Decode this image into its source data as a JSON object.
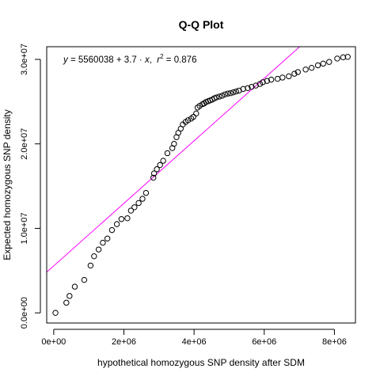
{
  "chart_data": {
    "type": "scatter",
    "title": "Q-Q Plot",
    "xlabel": "hypothetical homozygous SNP density after SDM",
    "ylabel": "Expected homozygous SNP density",
    "xlim": [
      -200000,
      8600000
    ],
    "ylim": [
      -1200000,
      31500000
    ],
    "xticks": [
      0,
      2000000,
      4000000,
      6000000,
      8000000
    ],
    "xtick_labels": [
      "0e+00",
      "2e+06",
      "4e+06",
      "6e+06",
      "8e+06"
    ],
    "yticks": [
      0,
      10000000,
      20000000,
      30000000
    ],
    "ytick_labels": [
      "0.0e+00",
      "1.0e+07",
      "2.0e+07",
      "3.0e+07"
    ],
    "grid": false,
    "legend": "none",
    "point_color": "#000000",
    "line_color": "#ff00ff",
    "fit_line": {
      "intercept": 5560038,
      "slope": 3.7
    },
    "annotation": {
      "y_var": "y",
      "formula_mid": " = 5560038 + 3.7 · ",
      "x_var": "x",
      "sep": ",  ",
      "r_var": "r",
      "r_exp": "2",
      "r_val": " = 0.876"
    },
    "points": [
      [
        50000,
        0
      ],
      [
        360000,
        1200000
      ],
      [
        450000,
        2000000
      ],
      [
        600000,
        3100000
      ],
      [
        870000,
        3900000
      ],
      [
        1050000,
        5600000
      ],
      [
        1150000,
        6700000
      ],
      [
        1280000,
        7500000
      ],
      [
        1400000,
        8300000
      ],
      [
        1530000,
        8800000
      ],
      [
        1660000,
        9800000
      ],
      [
        1800000,
        10500000
      ],
      [
        1930000,
        11100000
      ],
      [
        2100000,
        11200000
      ],
      [
        2200000,
        12100000
      ],
      [
        2300000,
        12500000
      ],
      [
        2420000,
        13000000
      ],
      [
        2530000,
        13500000
      ],
      [
        2630000,
        14200000
      ],
      [
        2840000,
        16000000
      ],
      [
        2860000,
        16500000
      ],
      [
        2940000,
        17000000
      ],
      [
        3030000,
        17500000
      ],
      [
        3120000,
        18000000
      ],
      [
        3240000,
        18900000
      ],
      [
        3380000,
        19500000
      ],
      [
        3430000,
        20000000
      ],
      [
        3500000,
        20800000
      ],
      [
        3550000,
        21300000
      ],
      [
        3620000,
        21800000
      ],
      [
        3680000,
        22300000
      ],
      [
        3760000,
        22600000
      ],
      [
        3830000,
        22800000
      ],
      [
        3920000,
        23000000
      ],
      [
        3980000,
        23200000
      ],
      [
        4060000,
        23600000
      ],
      [
        4100000,
        24300000
      ],
      [
        4160000,
        24500000
      ],
      [
        4240000,
        24700000
      ],
      [
        4290000,
        24800000
      ],
      [
        4340000,
        24950000
      ],
      [
        4400000,
        25050000
      ],
      [
        4460000,
        25150000
      ],
      [
        4520000,
        25250000
      ],
      [
        4580000,
        25400000
      ],
      [
        4640000,
        25500000
      ],
      [
        4720000,
        25600000
      ],
      [
        4800000,
        25700000
      ],
      [
        4880000,
        25850000
      ],
      [
        4960000,
        25950000
      ],
      [
        5040000,
        26000000
      ],
      [
        5120000,
        26100000
      ],
      [
        5200000,
        26200000
      ],
      [
        5280000,
        26300000
      ],
      [
        5400000,
        26500000
      ],
      [
        5530000,
        26600000
      ],
      [
        5640000,
        26750000
      ],
      [
        5760000,
        26900000
      ],
      [
        5880000,
        27100000
      ],
      [
        5960000,
        27300000
      ],
      [
        6080000,
        27450000
      ],
      [
        6200000,
        27600000
      ],
      [
        6380000,
        27700000
      ],
      [
        6520000,
        27850000
      ],
      [
        6700000,
        28000000
      ],
      [
        6860000,
        28300000
      ],
      [
        6960000,
        28500000
      ],
      [
        7180000,
        28800000
      ],
      [
        7350000,
        29000000
      ],
      [
        7530000,
        29300000
      ],
      [
        7680000,
        29500000
      ],
      [
        7850000,
        29700000
      ],
      [
        8080000,
        30100000
      ],
      [
        8250000,
        30250000
      ],
      [
        8380000,
        30300000
      ]
    ]
  }
}
